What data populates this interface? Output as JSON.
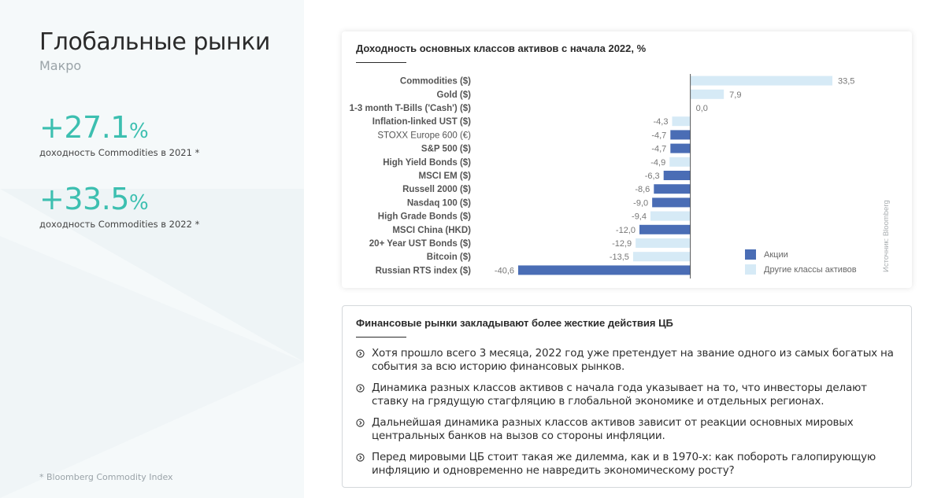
{
  "left_panel": {
    "title": "Глобальные рынки",
    "subtitle": "Макро",
    "stats": [
      {
        "value": "+27.1",
        "unit": "%",
        "caption": "доходность Commodities в 2021 *"
      },
      {
        "value": "+33.5",
        "unit": "%",
        "caption": "доходность Commodities в 2022 *"
      }
    ],
    "footnote": "* Bloomberg Commodity Index"
  },
  "chart_card": {
    "title": "Доходность основных классов активов с начала 2022, %",
    "source": "Источник: Bloomberg"
  },
  "chart_data": {
    "type": "bar",
    "orientation": "horizontal",
    "title": "Доходность основных классов активов с начала 2022, %",
    "categories": [
      "Commodities ($)",
      "Gold ($)",
      "1-3 month T-Bills ('Cash') ($)",
      "Inflation-linked UST ($)",
      "STOXX Europe 600 (€)",
      "S&P 500 ($)",
      "High Yield Bonds ($)",
      "MSCI EM ($)",
      "Russell 2000 ($)",
      "Nasdaq 100 ($)",
      "High Grade Bonds ($)",
      "MSCI China (HKD)",
      "20+ Year UST Bonds ($)",
      "Bitcoin ($)",
      "Russian RTS index ($)"
    ],
    "values": [
      33.5,
      7.9,
      0.0,
      -4.3,
      -4.7,
      -4.7,
      -4.9,
      -6.3,
      -8.6,
      -9.0,
      -9.4,
      -12.0,
      -12.9,
      -13.5,
      -40.6
    ],
    "value_labels": [
      "33,5",
      "7,9",
      "0,0",
      "-4,3",
      "-4,7",
      "-4,7",
      "-4,9",
      "-6,3",
      "-8,6",
      "-9,0",
      "-9,4",
      "-12,0",
      "-12,9",
      "-13,5",
      "-40,6"
    ],
    "groups": [
      "other",
      "other",
      "other",
      "other",
      "equity",
      "equity",
      "other",
      "equity",
      "equity",
      "equity",
      "other",
      "equity",
      "other",
      "other",
      "equity"
    ],
    "xlim": [
      -40.6,
      33.5
    ],
    "legend": [
      {
        "key": "equity",
        "label": "Акции",
        "color": "#4a6db5"
      },
      {
        "key": "other",
        "label": "Другие классы активов",
        "color": "#d6eaf6"
      }
    ],
    "legend_position": "bottom-right"
  },
  "text_card": {
    "title": "Финансовые рынки закладывают более жесткие действия ЦБ",
    "bullets": [
      "Хотя прошло всего 3 месяца, 2022 год уже претендует на звание одного из самых богатых на события за всю историю финансовых рынков.",
      "Динамика разных классов активов с начала года указывает на то, что инвесторы делают ставку на грядущую стагфляцию в глобальной экономике и отдельных регионах.",
      "Дальнейшая динамика разных классов активов зависит от реакции основных мировых центральных банков на вызов со стороны инфляции.",
      "Перед мировыми ЦБ стоит такая же дилемма, как и в 1970-х: как побороть галопирующую инфляцию и одновременно не навредить экономическому росту?"
    ]
  }
}
